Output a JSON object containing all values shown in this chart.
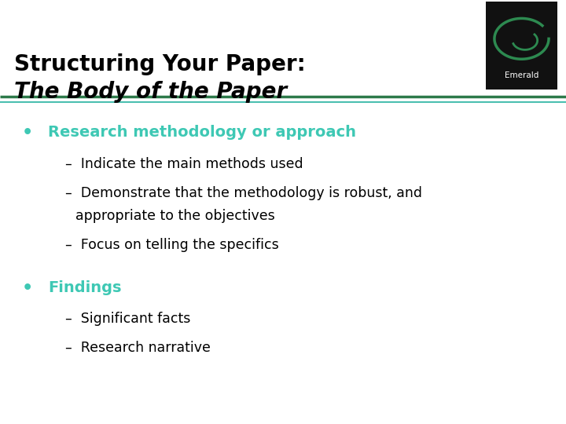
{
  "title_line1": "Structuring Your Paper:",
  "title_line2": "The Body of the Paper",
  "title_color": "#000000",
  "title_fontsize": 20,
  "separator_color_dark": "#2d7a4a",
  "separator_color_light": "#4bbfb0",
  "background_color": "#ffffff",
  "bullet_color": "#3ec8b4",
  "bullet1_heading": "Research methodology or approach",
  "bullet1_sub_1": "–  Indicate the main methods used",
  "bullet1_sub_2": "–  Demonstrate that the methodology is robust, and",
  "bullet1_sub_2b": "    appropriate to the objectives",
  "bullet1_sub_3": "–  Focus on telling the specifics",
  "bullet2_heading": "Findings",
  "bullet2_sub_1": "–  Significant facts",
  "bullet2_sub_2": "–  Research narrative",
  "heading_fontsize": 14,
  "sub_fontsize": 12.5,
  "emerald_bg": "#111111",
  "emerald_logo_color": "#2d8a50",
  "emerald_text": "Emerald",
  "fig_width": 7.2,
  "fig_height": 5.4,
  "dpi": 100
}
